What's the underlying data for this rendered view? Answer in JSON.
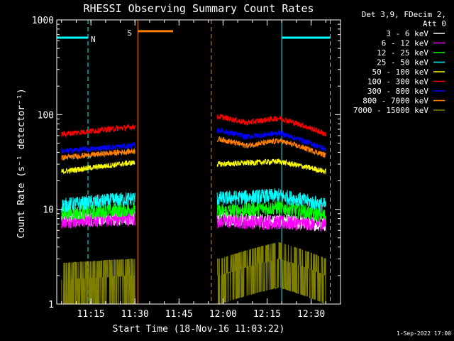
{
  "chart_data": {
    "type": "line",
    "title": "RHESSI Observing Summary Count Rates",
    "xlabel": "Start Time (18-Nov-16 11:03:22)",
    "ylabel": "Count Rate (s⁻¹ detector⁻¹)",
    "y_scale": "log",
    "ylim": [
      1,
      1000
    ],
    "xlim": [
      "11:03:22",
      "12:40:00"
    ],
    "x_ticks": [
      "11:15",
      "11:30",
      "11:45",
      "12:00",
      "12:15",
      "12:30"
    ],
    "y_ticks": [
      "1",
      "10",
      "100",
      "1000"
    ],
    "grid": false,
    "legend_header": [
      "Det 3,9, FDecim 2,",
      "Att 0"
    ],
    "legend_position": "right",
    "footer_date": "1-Sep-2022 17:00",
    "data_gaps": [
      [
        "11:30",
        "11:58"
      ]
    ],
    "series": [
      {
        "name": "3 - 6 keV",
        "color": "#ffffff",
        "values": [
          [
            "11:05",
            8
          ],
          [
            "11:29",
            8
          ],
          [
            "11:59",
            8
          ],
          [
            "12:35",
            7
          ]
        ]
      },
      {
        "name": "6 - 12 keV",
        "color": "#ff00ff",
        "values": [
          [
            "11:05",
            7.5
          ],
          [
            "11:29",
            8
          ],
          [
            "11:59",
            7.5
          ],
          [
            "12:35",
            7
          ]
        ]
      },
      {
        "name": "12 - 25 keV",
        "color": "#00ff00",
        "values": [
          [
            "11:05",
            9
          ],
          [
            "11:29",
            10
          ],
          [
            "11:59",
            9.5
          ],
          [
            "12:19",
            10.5
          ],
          [
            "12:35",
            8.5
          ]
        ]
      },
      {
        "name": "25 - 50 keV",
        "color": "#00ffff",
        "values": [
          [
            "11:05",
            11
          ],
          [
            "11:29",
            13
          ],
          [
            "11:59",
            13
          ],
          [
            "12:19",
            14
          ],
          [
            "12:35",
            11
          ]
        ]
      },
      {
        "name": "50 - 100 keV",
        "color": "#ffff00",
        "values": [
          [
            "11:05",
            25
          ],
          [
            "11:29",
            31
          ],
          [
            "11:59",
            30
          ],
          [
            "12:19",
            32
          ],
          [
            "12:35",
            25
          ]
        ]
      },
      {
        "name": "100 - 300 keV",
        "color": "#ff0000",
        "values": [
          [
            "11:05",
            62
          ],
          [
            "11:29",
            74
          ],
          [
            "11:59",
            95
          ],
          [
            "12:08",
            82
          ],
          [
            "12:19",
            92
          ],
          [
            "12:35",
            62
          ]
        ]
      },
      {
        "name": "300 - 800 keV",
        "color": "#0000ff",
        "values": [
          [
            "11:05",
            41
          ],
          [
            "11:29",
            47
          ],
          [
            "11:59",
            68
          ],
          [
            "12:08",
            58
          ],
          [
            "12:19",
            64
          ],
          [
            "12:35",
            43
          ]
        ]
      },
      {
        "name": "800 - 7000 keV",
        "color": "#ff8000",
        "values": [
          [
            "11:05",
            35
          ],
          [
            "11:29",
            41
          ],
          [
            "11:59",
            55
          ],
          [
            "12:08",
            47
          ],
          [
            "12:19",
            53
          ],
          [
            "12:35",
            37
          ]
        ]
      },
      {
        "name": "7000 - 15000 keV",
        "color": "#808000",
        "values": [
          [
            "11:05",
            1.8
          ],
          [
            "11:29",
            2
          ],
          [
            "11:59",
            2
          ],
          [
            "12:19",
            3
          ],
          [
            "12:35",
            2
          ]
        ]
      }
    ],
    "flag_bars": [
      {
        "label": "N",
        "color": "#00ffff",
        "segments": [
          [
            "11:03:22",
            "11:14:00"
          ],
          [
            "12:20:00",
            "12:36:30"
          ]
        ],
        "level": 650
      },
      {
        "label": "S",
        "color": "#ff8000",
        "segments": [
          [
            "11:31:00",
            "11:43:00"
          ]
        ],
        "level": 760
      }
    ],
    "vertical_markers": [
      {
        "time": "11:14:00",
        "color": "#00ffff",
        "style": "dashed"
      },
      {
        "time": "11:31:00",
        "color": "#ff8000",
        "style": "solid"
      },
      {
        "time": "11:56:00",
        "color": "#ff8000",
        "style": "dashed"
      },
      {
        "time": "12:20:00",
        "color": "#00ffff",
        "style": "solid"
      },
      {
        "time": "12:36:30",
        "color": "#00ffff",
        "style": "dashed"
      }
    ]
  }
}
